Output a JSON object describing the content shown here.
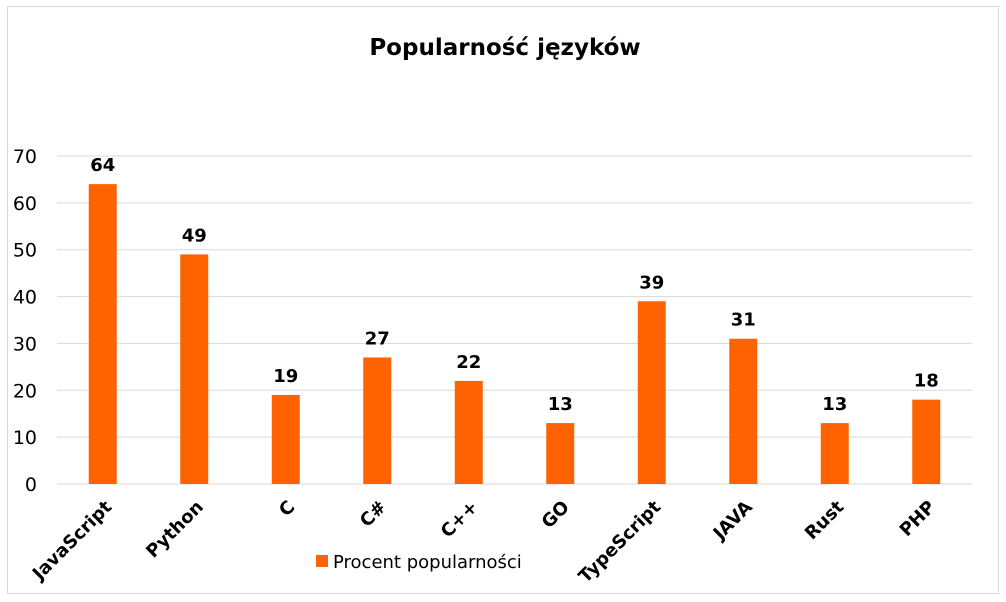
{
  "chart_data": {
    "type": "bar",
    "title": "Popularność języków",
    "categories": [
      "JavaScript",
      "Python",
      "C",
      "C#",
      "C++",
      "GO",
      "TypeScript",
      "JAVA",
      "Rust",
      "PHP"
    ],
    "series": [
      {
        "name": "Procent popularności",
        "values": [
          64,
          49,
          19,
          27,
          22,
          13,
          39,
          31,
          13,
          18
        ],
        "color": "#ff6200"
      }
    ],
    "yticks": [
      "0",
      "10",
      "20",
      "30",
      "40",
      "50",
      "60",
      "70"
    ],
    "ylim": [
      0,
      70
    ],
    "grid": true,
    "legend_position": "bottom",
    "data_labels": true,
    "xlabel": "",
    "ylabel": ""
  }
}
